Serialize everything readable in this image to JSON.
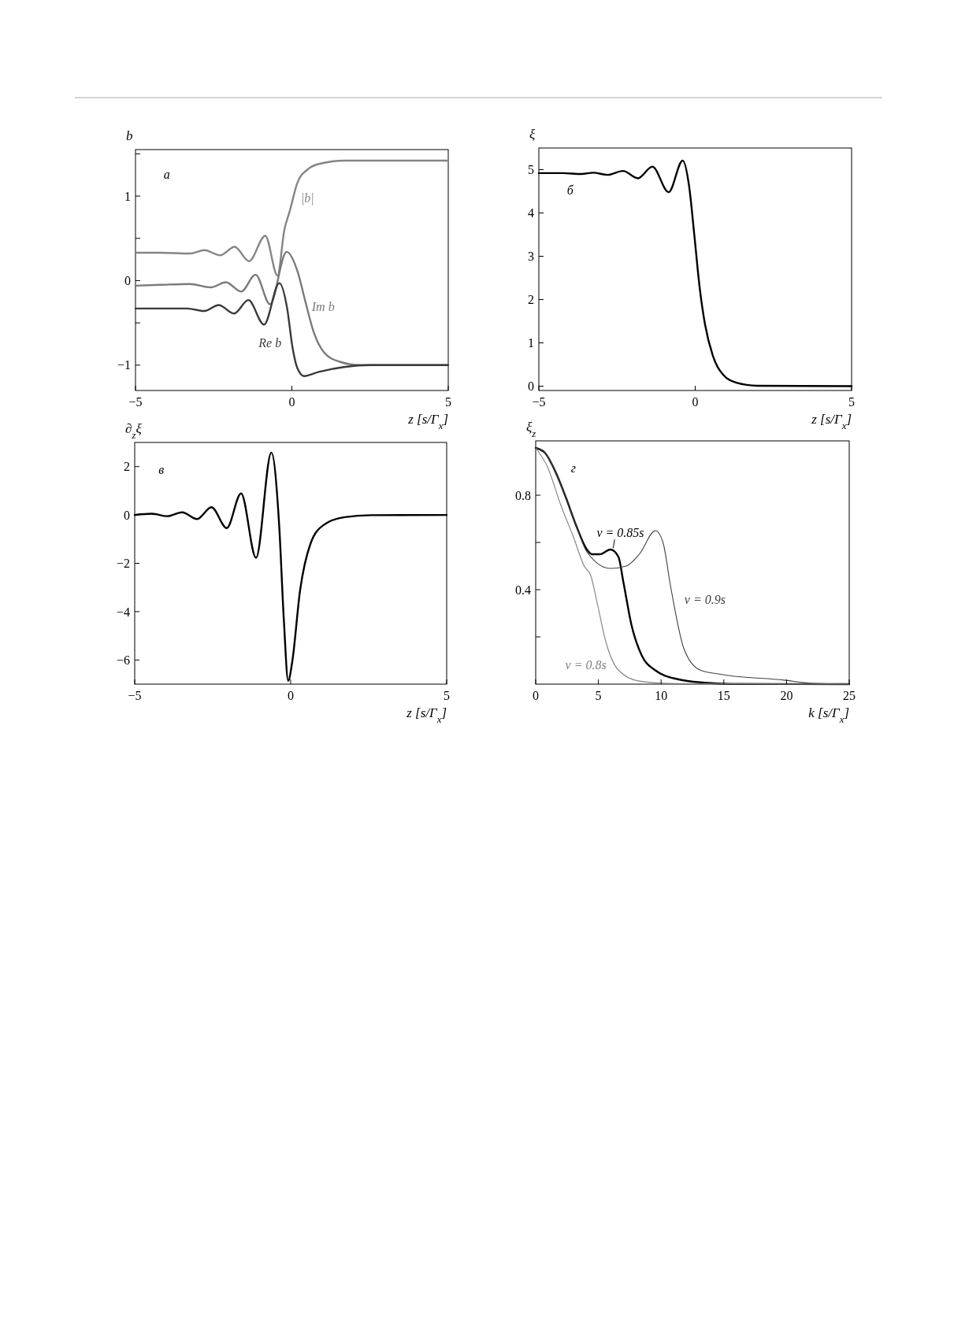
{
  "chart_data": [
    {
      "type": "line",
      "ylabel": "b",
      "xlabel": "z [s/Γ$_{x}$]",
      "annotations": [
        "a"
      ],
      "xlim": [
        -5,
        5
      ],
      "xticks": [
        -5,
        0,
        5
      ],
      "ylim": [
        -1.3,
        1.55
      ],
      "yticks": [
        {
          "value": -0.5,
          "label": null
        },
        {
          "value": 0.5,
          "label": null
        },
        {
          "value": 1.5,
          "label": null
        },
        -1,
        0,
        1
      ],
      "series": [
        {
          "name": "|b|",
          "color": "#858585",
          "x": [
            -5,
            -4.2,
            -3.26,
            -2.8,
            -2.29,
            -1.83,
            -1.37,
            -0.85,
            -0.46,
            -0.24,
            -0.07,
            0.18,
            0.52,
            0.86,
            1.7,
            5
          ],
          "values": [
            0.33,
            0.33,
            0.32,
            0.36,
            0.3,
            0.4,
            0.23,
            0.53,
            0.06,
            0.6,
            0.82,
            1.16,
            1.32,
            1.38,
            1.42,
            1.42
          ]
        },
        {
          "name": "Im b",
          "color": "#7a7a7a",
          "x": [
            -5,
            -4.2,
            -3.26,
            -2.59,
            -2.11,
            -1.62,
            -1.16,
            -0.7,
            -0.17,
            0.18,
            0.44,
            0.69,
            1.03,
            1.53,
            2.2,
            5
          ],
          "values": [
            -0.06,
            -0.05,
            -0.04,
            -0.08,
            -0.02,
            -0.13,
            0.07,
            -0.28,
            0.34,
            0.11,
            -0.26,
            -0.6,
            -0.85,
            -0.96,
            -1,
            -1
          ]
        },
        {
          "name": "Re b",
          "color": "#3a3a3a",
          "x": [
            -5,
            -3.34,
            -2.8,
            -2.34,
            -1.85,
            -1.39,
            -0.89,
            -0.4,
            -0.15,
            0.02,
            0.18,
            0.39,
            0.86,
            1.7,
            2.5,
            5
          ],
          "values": [
            -0.33,
            -0.33,
            -0.36,
            -0.29,
            -0.39,
            -0.23,
            -0.52,
            -0.03,
            -0.33,
            -0.79,
            -1.04,
            -1.13,
            -1.08,
            -1.02,
            -1,
            -1
          ]
        }
      ]
    },
    {
      "type": "line",
      "ylabel": "ξ",
      "xlabel": "z [s/Γ$_{x}$]",
      "annotations": [
        "б"
      ],
      "xlim": [
        -5,
        5
      ],
      "xticks": [
        -5,
        0,
        5
      ],
      "ylim": [
        -0.1,
        5.5
      ],
      "yticks": [
        0,
        1,
        2,
        3,
        4,
        5
      ],
      "series": [
        {
          "color": "#000000",
          "x": [
            -5,
            -4.23,
            -3.64,
            -3.26,
            -2.8,
            -2.31,
            -1.83,
            -1.37,
            -0.85,
            -0.4,
            -0.19,
            -0.03,
            0.14,
            0.31,
            0.56,
            0.9,
            1.32,
            1.99,
            5
          ],
          "values": [
            4.92,
            4.92,
            4.9,
            4.93,
            4.88,
            4.97,
            4.8,
            5.07,
            4.48,
            5.21,
            4.59,
            3.5,
            2.29,
            1.44,
            0.71,
            0.26,
            0.08,
            0.01,
            0
          ]
        }
      ]
    },
    {
      "type": "line",
      "ylabel": "∂$_{z}$ξ",
      "xlabel": "z [s/Γ$_{x}$]",
      "annotations": [
        "в"
      ],
      "xlim": [
        -5,
        5
      ],
      "xticks": [
        -5,
        0,
        5
      ],
      "ylim": [
        -7,
        3
      ],
      "yticks": [
        -6,
        -4,
        -2,
        0,
        2
      ],
      "series": [
        {
          "color": "#000000",
          "x": [
            -5,
            -4.45,
            -3.95,
            -3.48,
            -3,
            -2.54,
            -2.05,
            -1.59,
            -1.11,
            -0.62,
            -0.37,
            -0.22,
            -0.08,
            0.05,
            0.3,
            0.64,
            1.06,
            1.73,
            2.57,
            5
          ],
          "values": [
            0,
            0.05,
            -0.05,
            0.11,
            -0.17,
            0.32,
            -0.54,
            0.89,
            -1.77,
            2.58,
            -0.41,
            -4.33,
            -6.86,
            -6.07,
            -3.13,
            -1.17,
            -0.41,
            -0.09,
            -0.01,
            0
          ]
        }
      ]
    },
    {
      "type": "line",
      "ylabel": "ξ$_{z}$",
      "xlabel": "k [s/Γ$_{x}$]",
      "annotations": [
        "г"
      ],
      "xlim": [
        0,
        25
      ],
      "xticks": [
        0,
        5,
        10,
        15,
        20,
        25
      ],
      "ylim": [
        0,
        1.03
      ],
      "yticks": [
        {
          "value": 0.2,
          "label": null
        },
        0.4,
        {
          "value": 0.6,
          "label": null
        },
        0.8
      ],
      "series": [
        {
          "name": "v = 0.85s",
          "color": "#000000",
          "x": [
            0,
            0.73,
            1.57,
            2.41,
            3.24,
            4.08,
            4.5,
            5.13,
            5.96,
            6.59,
            7,
            7.64,
            8.47,
            9.5,
            11.4,
            13.5,
            15.5,
            25
          ],
          "values": [
            1,
            0.98,
            0.9,
            0.79,
            0.67,
            0.57,
            0.55,
            0.55,
            0.57,
            0.54,
            0.43,
            0.25,
            0.12,
            0.06,
            0.02,
            0.006,
            0.001,
            0
          ]
        },
        {
          "name": "v = 0.9s",
          "color": "#404040",
          "x": [
            0,
            0.73,
            1.57,
            2.41,
            3.24,
            4.08,
            5.96,
            7.22,
            8.26,
            9.56,
            10.15,
            10.77,
            11.82,
            13.1,
            14.96,
            19.8,
            21.9,
            25
          ],
          "values": [
            1,
            0.98,
            0.9,
            0.79,
            0.67,
            0.56,
            0.49,
            0.5,
            0.55,
            0.65,
            0.6,
            0.41,
            0.15,
            0.06,
            0.04,
            0.017,
            0.004,
            0
          ]
        },
        {
          "name": "v = 0.8s",
          "color": "#808080",
          "x": [
            0,
            0.94,
            1.99,
            3.03,
            3.87,
            4.39,
            4.92,
            5.54,
            6.59,
            8.26,
            11.4,
            25
          ],
          "values": [
            1,
            0.92,
            0.76,
            0.62,
            0.5,
            0.46,
            0.34,
            0.19,
            0.06,
            0.013,
            0.002,
            0
          ]
        }
      ]
    }
  ]
}
